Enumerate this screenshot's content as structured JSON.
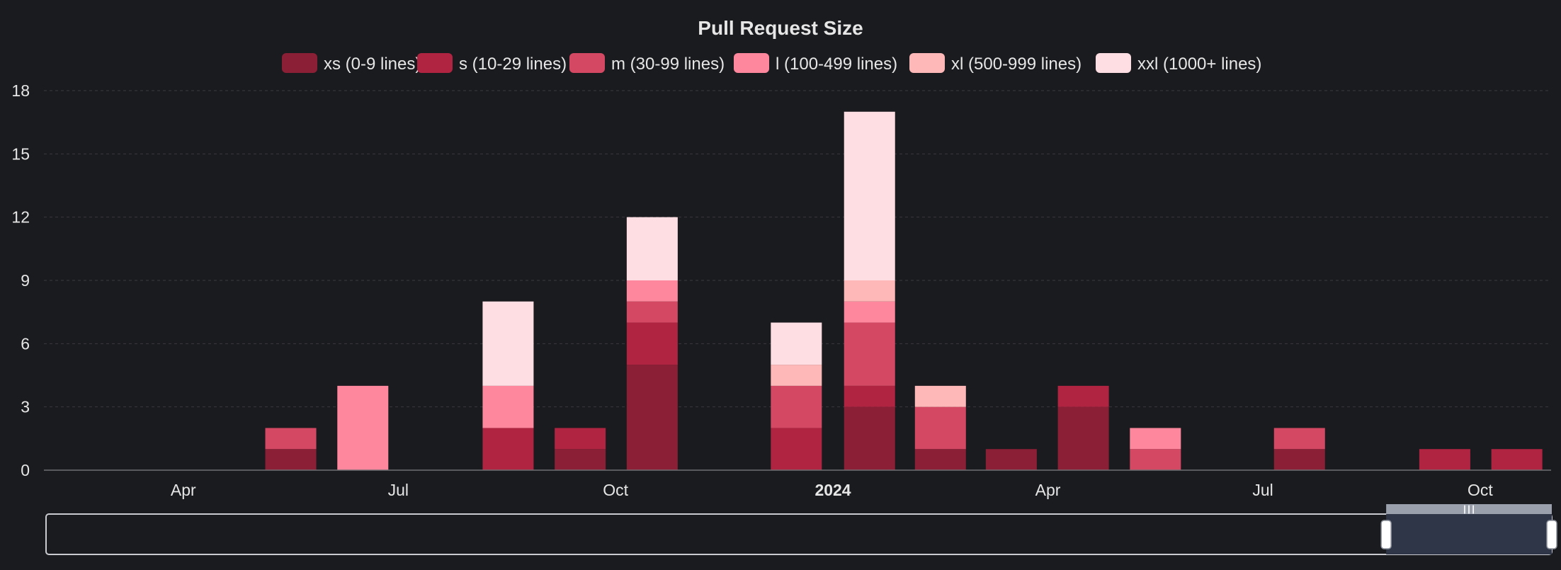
{
  "chart_data": {
    "type": "bar",
    "stacked": true,
    "title": "Pull Request Size",
    "ylim": [
      0,
      18
    ],
    "yticks": [
      0,
      3,
      6,
      9,
      12,
      15,
      18
    ],
    "grid": true,
    "legend_position": "top",
    "xlim": [
      "2023-02-01",
      "2024-10-31"
    ],
    "xticks": [
      {
        "date": "2023-04-01",
        "label": "Apr",
        "bold": false
      },
      {
        "date": "2023-07-01",
        "label": "Jul",
        "bold": false
      },
      {
        "date": "2023-10-01",
        "label": "Oct",
        "bold": false
      },
      {
        "date": "2024-01-01",
        "label": "2024",
        "bold": true
      },
      {
        "date": "2024-04-01",
        "label": "Apr",
        "bold": false
      },
      {
        "date": "2024-07-01",
        "label": "Jul",
        "bold": false
      },
      {
        "date": "2024-10-01",
        "label": "Oct",
        "bold": false
      }
    ],
    "categories": [
      "2023-05",
      "2023-06",
      "2023-08",
      "2023-09",
      "2023-10",
      "2023-12",
      "2024-01",
      "2024-02",
      "2024-03",
      "2024-04",
      "2024-05",
      "2024-07",
      "2024-09",
      "2024-10"
    ],
    "series": [
      {
        "name": "xs (0-9 lines)",
        "color": "#8b1f35",
        "values": [
          1,
          0,
          0,
          1,
          5,
          0,
          3,
          1,
          1,
          3,
          0,
          1,
          0,
          0
        ]
      },
      {
        "name": "s (10-29 lines)",
        "color": "#b02442",
        "values": [
          0,
          0,
          2,
          1,
          2,
          2,
          1,
          0,
          0,
          1,
          0,
          0,
          1,
          1
        ]
      },
      {
        "name": "m (30-99 lines)",
        "color": "#d44863",
        "values": [
          1,
          0,
          0,
          0,
          1,
          2,
          3,
          2,
          0,
          0,
          1,
          1,
          0,
          0
        ]
      },
      {
        "name": "l (100-499 lines)",
        "color": "#ff879d",
        "values": [
          0,
          4,
          2,
          0,
          1,
          0,
          1,
          0,
          0,
          0,
          1,
          0,
          0,
          0
        ]
      },
      {
        "name": "xl (500-999 lines)",
        "color": "#ffb8b8",
        "values": [
          0,
          0,
          0,
          0,
          0,
          1,
          1,
          1,
          0,
          0,
          0,
          0,
          0,
          0
        ]
      },
      {
        "name": "xxl (1000+ lines)",
        "color": "#ffdee3",
        "values": [
          0,
          0,
          4,
          0,
          3,
          2,
          8,
          0,
          0,
          0,
          0,
          0,
          0,
          0
        ]
      }
    ]
  },
  "zoom_slider": {
    "window_start_fraction": 0.89,
    "window_end_fraction": 1.0,
    "handle_glyph": "┃┃┃"
  },
  "colors": {
    "background": "#1a1b1e",
    "text": "#e6e6e6",
    "grid": "#3a3b3f",
    "slider_window": "#2f3648"
  }
}
